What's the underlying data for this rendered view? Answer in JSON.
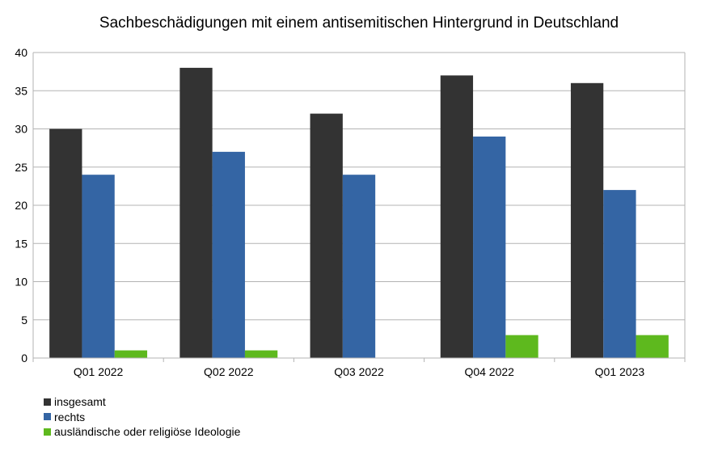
{
  "chart_data": {
    "type": "bar",
    "title": "Sachbeschädigungen mit einem antisemitischen Hintergrund in Deutschland",
    "xlabel": "",
    "ylabel": "",
    "categories": [
      "Q01 2022",
      "Q02 2022",
      "Q03 2022",
      "Q04 2022",
      "Q01 2023"
    ],
    "series": [
      {
        "name": "insgesamt",
        "color": "#333333",
        "values": [
          30,
          38,
          32,
          37,
          36
        ]
      },
      {
        "name": "rechts",
        "color": "#3465a4",
        "values": [
          24,
          27,
          24,
          29,
          22
        ]
      },
      {
        "name": "ausländische oder religiöse Ideologie",
        "color": "#5eb91e",
        "values": [
          1,
          1,
          0,
          3,
          3
        ]
      }
    ],
    "ylim": [
      0,
      40
    ],
    "yticks": [
      "0",
      "5",
      "10",
      "15",
      "20",
      "25",
      "30",
      "35",
      "40"
    ],
    "grid": true,
    "legend_position": "bottom-left"
  }
}
